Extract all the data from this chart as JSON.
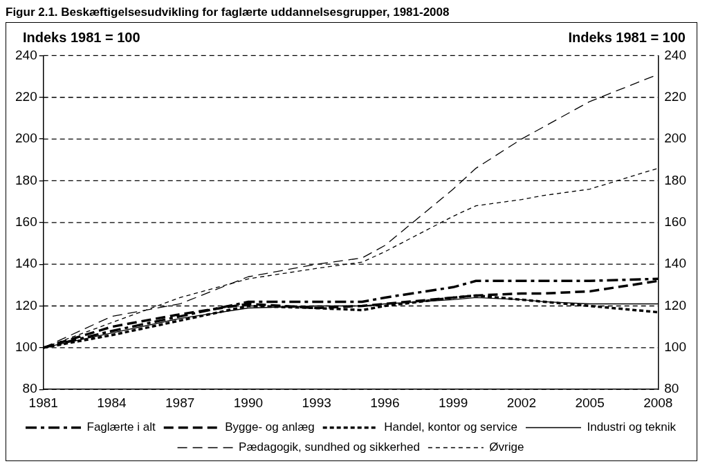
{
  "chart_data": {
    "type": "line",
    "title": "Figur 2.1. Beskæftigelsesudvikling for faglærte uddannelsesgrupper, 1981-2008",
    "ylabel": "Indeks 1981 = 100",
    "y2label": "Indeks 1981 = 100",
    "x": [
      1981,
      1984,
      1987,
      1990,
      1993,
      1995,
      1996,
      1999,
      2000,
      2002,
      2003,
      2005,
      2008
    ],
    "series": [
      {
        "name": "Faglærte i alt",
        "color": "#000000",
        "line_style": "dashdot",
        "values": [
          100,
          108,
          115,
          122,
          122,
          122,
          124,
          129,
          132,
          132,
          132,
          132,
          133
        ]
      },
      {
        "name": "Bygge- og anlæg",
        "color": "#000000",
        "line_style": "dashed",
        "values": [
          100,
          110,
          116,
          121,
          119,
          120,
          121,
          124,
          125,
          126,
          126,
          127,
          132
        ]
      },
      {
        "name": "Handel, kontor og service",
        "color": "#000000",
        "line_style": "dotted",
        "values": [
          100,
          106,
          113,
          120,
          119,
          118,
          120,
          124,
          125,
          123,
          122,
          120,
          117
        ]
      },
      {
        "name": "Industri og teknik",
        "color": "#000000",
        "line_style": "solid",
        "values": [
          100,
          107,
          114,
          119,
          120,
          120,
          121,
          123,
          124,
          123,
          122,
          121,
          121
        ]
      },
      {
        "name": "Pædagogik, sundhed og sikkerhed",
        "color": "#000000",
        "line_style": "dashed",
        "values": [
          100,
          115,
          121,
          134,
          140,
          143,
          149,
          176,
          186,
          200,
          206,
          218,
          231
        ]
      },
      {
        "name": "Øvrige",
        "color": "#000000",
        "line_style": "dotted",
        "values": [
          100,
          112,
          124,
          133,
          138,
          141,
          146,
          163,
          168,
          171,
          173,
          176,
          186
        ]
      }
    ],
    "xlim": [
      1981,
      2008
    ],
    "xticks": [
      1981,
      1984,
      1987,
      1990,
      1993,
      1996,
      1999,
      2002,
      2005,
      2008
    ],
    "ylim": [
      80,
      240
    ],
    "yticks": [
      80,
      100,
      120,
      140,
      160,
      180,
      200,
      220,
      240
    ],
    "y2lim": [
      80,
      240
    ],
    "y2ticks": [
      80,
      100,
      120,
      140,
      160,
      180,
      200,
      220,
      240
    ],
    "grid": "y",
    "legend": "bottom",
    "marker": "none"
  }
}
